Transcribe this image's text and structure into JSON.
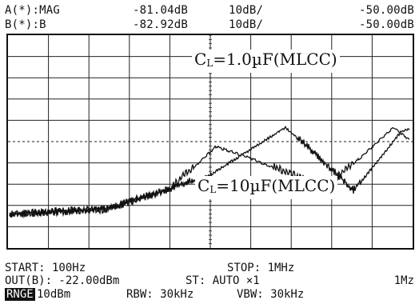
{
  "header": {
    "trace_a": {
      "label": "A(*):MAG",
      "value": "-81.04dB",
      "scale": "10dB/",
      "ref": "-50.00dB"
    },
    "trace_b": {
      "label": "B(*):B",
      "value": "-82.92dB",
      "scale": "10dB/",
      "ref": "-50.00dB"
    }
  },
  "annotations": {
    "top": {
      "prefix": "C",
      "sub": "L",
      "text": "=1.0µF(MLCC)"
    },
    "bottom": {
      "prefix": "C",
      "sub": "L",
      "text": "=10µF(MLCC)"
    }
  },
  "footer": {
    "start": "START: 100Hz",
    "stop": "STOP: 1MHz",
    "out": "OUT(B): -22.00dBm",
    "st": "ST: AUTO ×1",
    "stop_right": "1Mz",
    "range_button": "RNGE",
    "range_value": "10dBm",
    "rbw": "RBW: 30kHz",
    "vbw": "VBW: 30kHz"
  },
  "colors": {
    "trace": "#111111",
    "grid": "#222222",
    "background": "#ffffff"
  }
}
